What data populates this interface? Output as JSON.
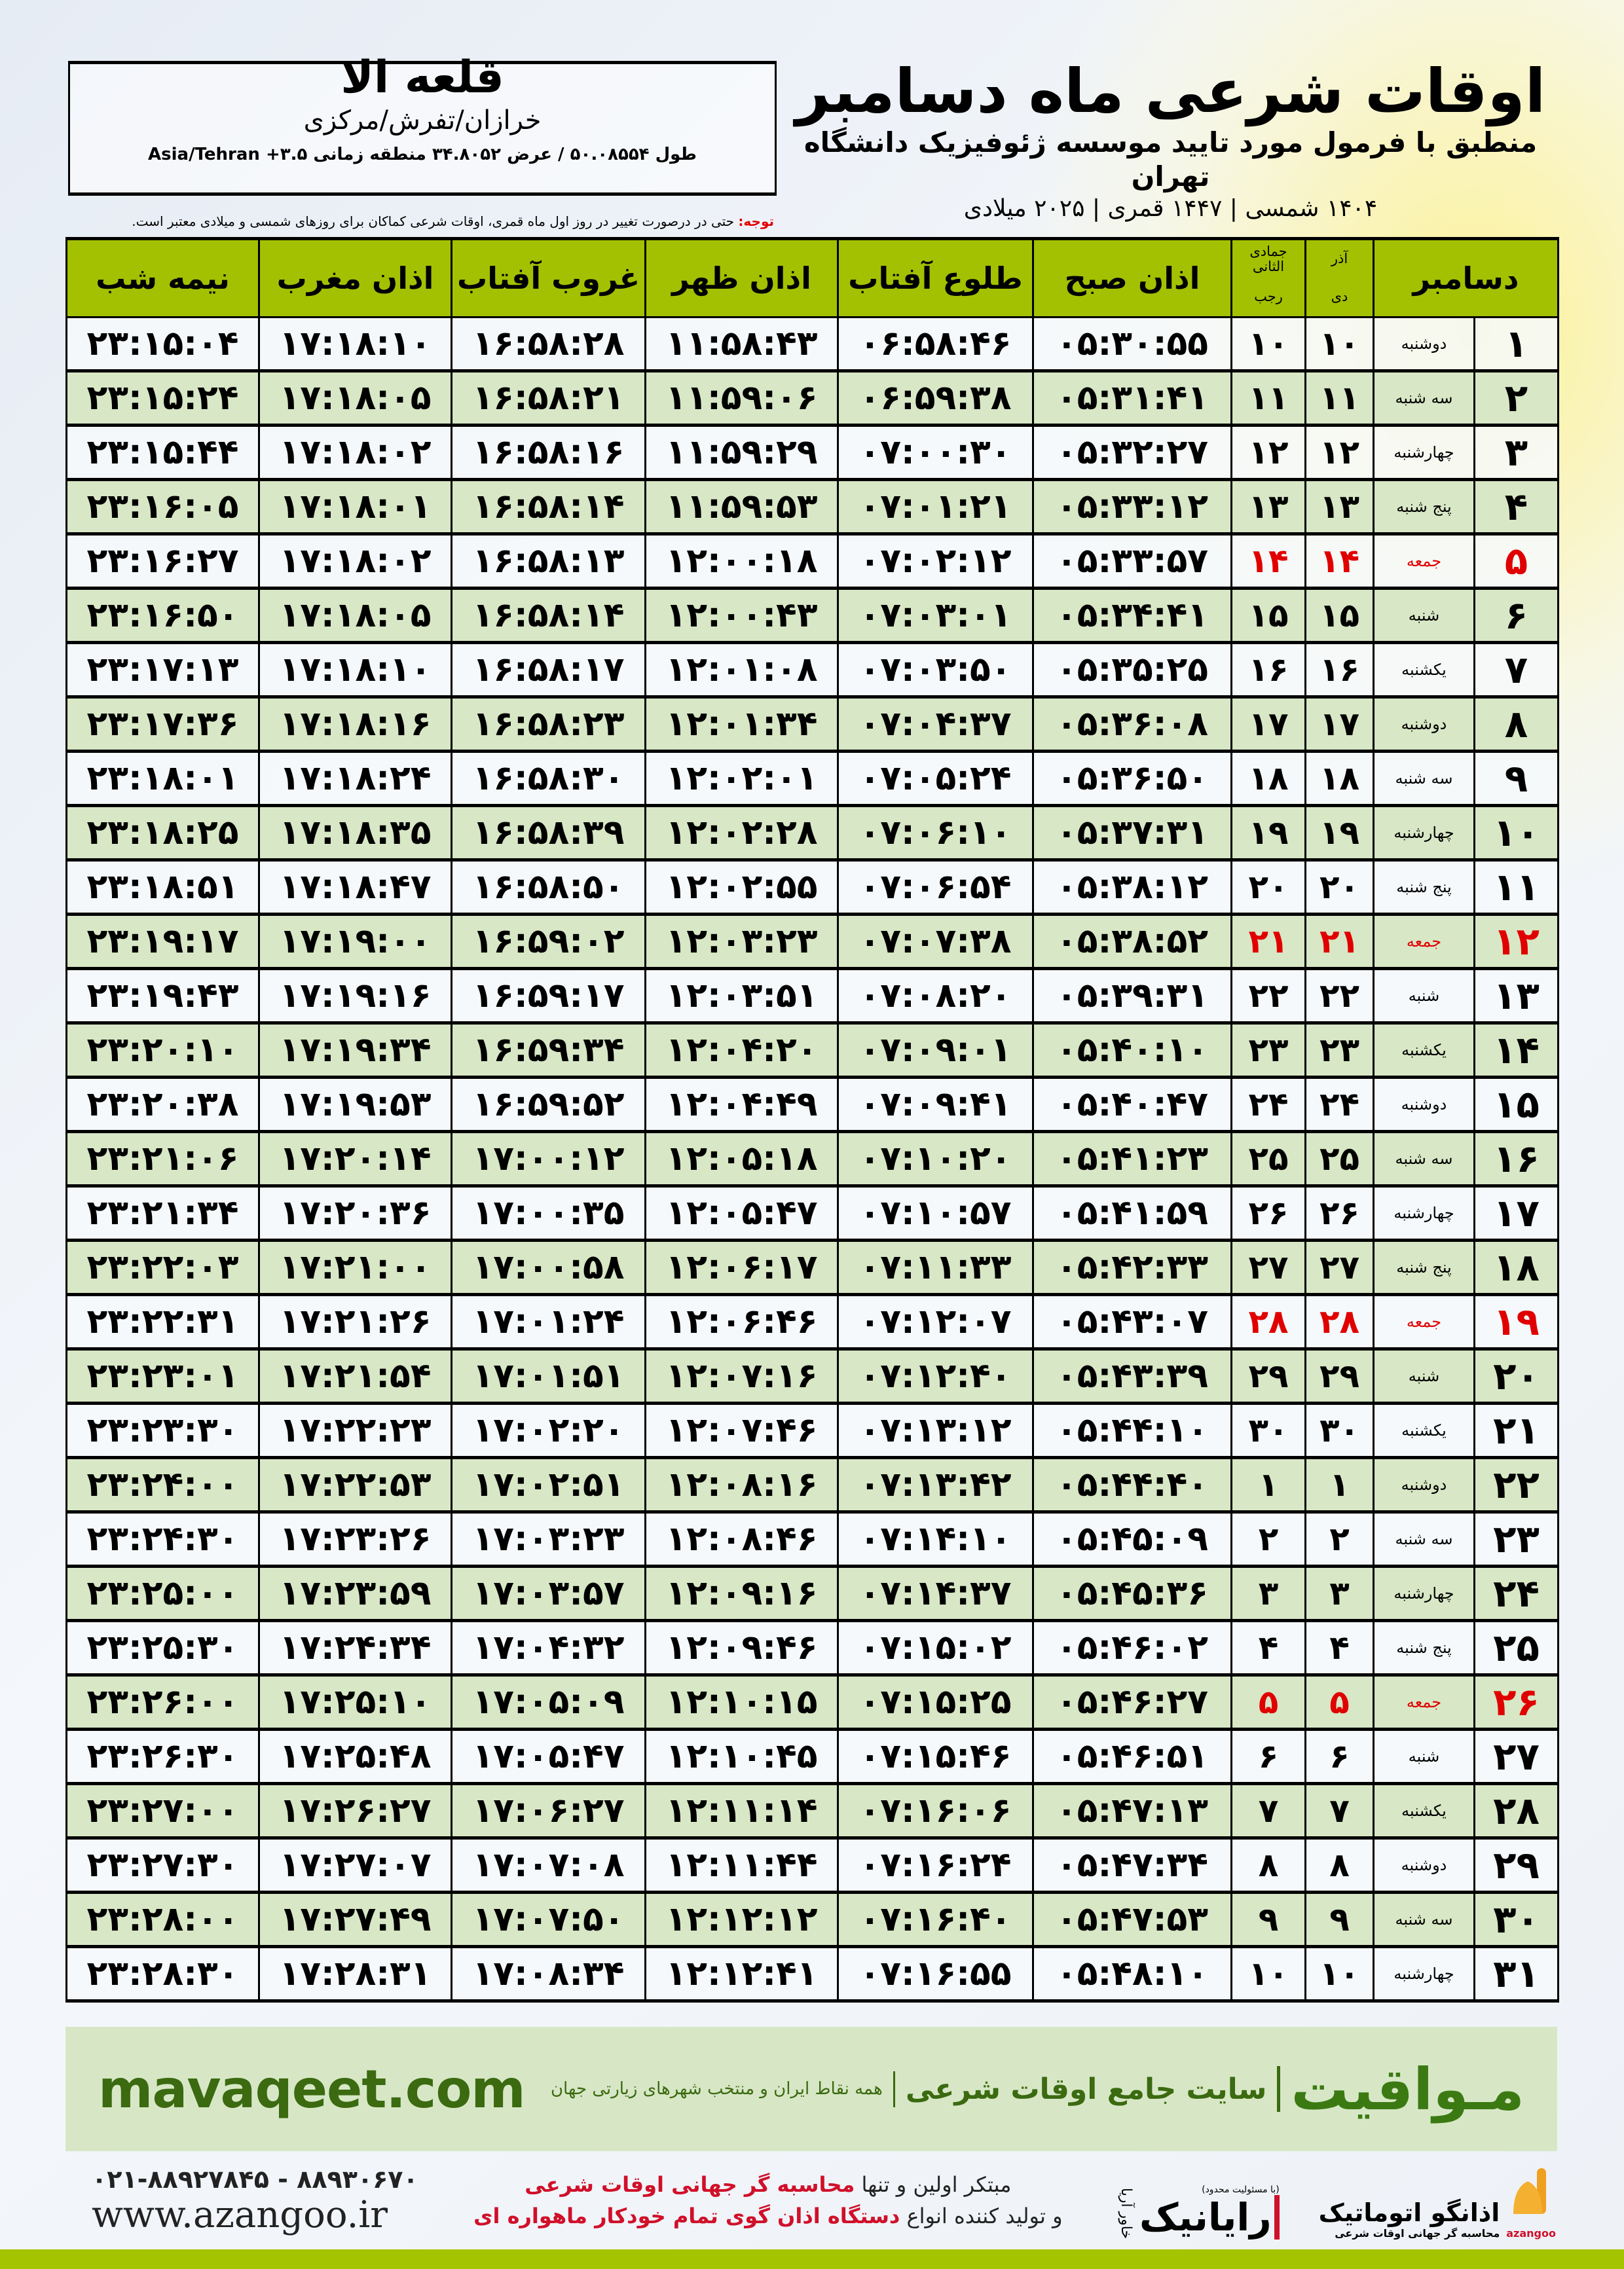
{
  "header": {
    "title": "اوقات شرعی ماه دسامبر",
    "subtitle": "منطبق با فرمول مورد تایید موسسه ژئوفیزیک دانشگاه تهران",
    "date_line": "۱۴۰۴ شمسی | ۱۴۴۷ قمری | ۲۰۲۵ میلادی"
  },
  "city": {
    "name": "قلعه الا",
    "region": "خرازان/تفرش/مرکزی",
    "coords": "طول ۵۰.۰۸۵۵۴ / عرض ۳۴.۸۰۵۲ منطقه زمانی ۳.۵+ Asia/Tehran"
  },
  "note": {
    "label": "توجه:",
    "text": " حتی در درصورت تغییر در روز اول ماه قمری، اوقات شرعی کماکان برای روزهای شمسی و میلادی معتبر است."
  },
  "table": {
    "headers": {
      "month": "دسامبر",
      "solar_top": "آذر",
      "solar_bottom": "دی",
      "lunar_top": "جمادی الثانی",
      "lunar_bottom": "رجب",
      "fajr": "اذان صبح",
      "sunrise": "طلوع آفتاب",
      "dhuhr": "اذان ظهر",
      "sunset": "غروب آفتاب",
      "maghrib": "اذان مغرب",
      "midnight": "نیمه شب"
    },
    "highlight_color": "#e00000",
    "header_color": "#a3c100",
    "rows": [
      [
        "۱",
        "دوشنبه",
        "۱۰",
        "۱۰",
        "۰۵:۳۰:۵۵",
        "۰۶:۵۸:۴۶",
        "۱۱:۵۸:۴۳",
        "۱۶:۵۸:۲۸",
        "۱۷:۱۸:۱۰",
        "۲۳:۱۵:۰۴"
      ],
      [
        "۲",
        "سه شنبه",
        "۱۱",
        "۱۱",
        "۰۵:۳۱:۴۱",
        "۰۶:۵۹:۳۸",
        "۱۱:۵۹:۰۶",
        "۱۶:۵۸:۲۱",
        "۱۷:۱۸:۰۵",
        "۲۳:۱۵:۲۴"
      ],
      [
        "۳",
        "چهارشنبه",
        "۱۲",
        "۱۲",
        "۰۵:۳۲:۲۷",
        "۰۷:۰۰:۳۰",
        "۱۱:۵۹:۲۹",
        "۱۶:۵۸:۱۶",
        "۱۷:۱۸:۰۲",
        "۲۳:۱۵:۴۴"
      ],
      [
        "۴",
        "پنج شنبه",
        "۱۳",
        "۱۳",
        "۰۵:۳۳:۱۲",
        "۰۷:۰۱:۲۱",
        "۱۱:۵۹:۵۳",
        "۱۶:۵۸:۱۴",
        "۱۷:۱۸:۰۱",
        "۲۳:۱۶:۰۵"
      ],
      [
        "۵",
        "جمعه",
        "۱۴",
        "۱۴",
        "۰۵:۳۳:۵۷",
        "۰۷:۰۲:۱۲",
        "۱۲:۰۰:۱۸",
        "۱۶:۵۸:۱۳",
        "۱۷:۱۸:۰۲",
        "۲۳:۱۶:۲۷"
      ],
      [
        "۶",
        "شنبه",
        "۱۵",
        "۱۵",
        "۰۵:۳۴:۴۱",
        "۰۷:۰۳:۰۱",
        "۱۲:۰۰:۴۳",
        "۱۶:۵۸:۱۴",
        "۱۷:۱۸:۰۵",
        "۲۳:۱۶:۵۰"
      ],
      [
        "۷",
        "یکشنبه",
        "۱۶",
        "۱۶",
        "۰۵:۳۵:۲۵",
        "۰۷:۰۳:۵۰",
        "۱۲:۰۱:۰۸",
        "۱۶:۵۸:۱۷",
        "۱۷:۱۸:۱۰",
        "۲۳:۱۷:۱۳"
      ],
      [
        "۸",
        "دوشنبه",
        "۱۷",
        "۱۷",
        "۰۵:۳۶:۰۸",
        "۰۷:۰۴:۳۷",
        "۱۲:۰۱:۳۴",
        "۱۶:۵۸:۲۳",
        "۱۷:۱۸:۱۶",
        "۲۳:۱۷:۳۶"
      ],
      [
        "۹",
        "سه شنبه",
        "۱۸",
        "۱۸",
        "۰۵:۳۶:۵۰",
        "۰۷:۰۵:۲۴",
        "۱۲:۰۲:۰۱",
        "۱۶:۵۸:۳۰",
        "۱۷:۱۸:۲۴",
        "۲۳:۱۸:۰۱"
      ],
      [
        "۱۰",
        "چهارشنبه",
        "۱۹",
        "۱۹",
        "۰۵:۳۷:۳۱",
        "۰۷:۰۶:۱۰",
        "۱۲:۰۲:۲۸",
        "۱۶:۵۸:۳۹",
        "۱۷:۱۸:۳۵",
        "۲۳:۱۸:۲۵"
      ],
      [
        "۱۱",
        "پنج شنبه",
        "۲۰",
        "۲۰",
        "۰۵:۳۸:۱۲",
        "۰۷:۰۶:۵۴",
        "۱۲:۰۲:۵۵",
        "۱۶:۵۸:۵۰",
        "۱۷:۱۸:۴۷",
        "۲۳:۱۸:۵۱"
      ],
      [
        "۱۲",
        "جمعه",
        "۲۱",
        "۲۱",
        "۰۵:۳۸:۵۲",
        "۰۷:۰۷:۳۸",
        "۱۲:۰۳:۲۳",
        "۱۶:۵۹:۰۲",
        "۱۷:۱۹:۰۰",
        "۲۳:۱۹:۱۷"
      ],
      [
        "۱۳",
        "شنبه",
        "۲۲",
        "۲۲",
        "۰۵:۳۹:۳۱",
        "۰۷:۰۸:۲۰",
        "۱۲:۰۳:۵۱",
        "۱۶:۵۹:۱۷",
        "۱۷:۱۹:۱۶",
        "۲۳:۱۹:۴۳"
      ],
      [
        "۱۴",
        "یکشنبه",
        "۲۳",
        "۲۳",
        "۰۵:۴۰:۱۰",
        "۰۷:۰۹:۰۱",
        "۱۲:۰۴:۲۰",
        "۱۶:۵۹:۳۴",
        "۱۷:۱۹:۳۴",
        "۲۳:۲۰:۱۰"
      ],
      [
        "۱۵",
        "دوشنبه",
        "۲۴",
        "۲۴",
        "۰۵:۴۰:۴۷",
        "۰۷:۰۹:۴۱",
        "۱۲:۰۴:۴۹",
        "۱۶:۵۹:۵۲",
        "۱۷:۱۹:۵۳",
        "۲۳:۲۰:۳۸"
      ],
      [
        "۱۶",
        "سه شنبه",
        "۲۵",
        "۲۵",
        "۰۵:۴۱:۲۳",
        "۰۷:۱۰:۲۰",
        "۱۲:۰۵:۱۸",
        "۱۷:۰۰:۱۲",
        "۱۷:۲۰:۱۴",
        "۲۳:۲۱:۰۶"
      ],
      [
        "۱۷",
        "چهارشنبه",
        "۲۶",
        "۲۶",
        "۰۵:۴۱:۵۹",
        "۰۷:۱۰:۵۷",
        "۱۲:۰۵:۴۷",
        "۱۷:۰۰:۳۵",
        "۱۷:۲۰:۳۶",
        "۲۳:۲۱:۳۴"
      ],
      [
        "۱۸",
        "پنج شنبه",
        "۲۷",
        "۲۷",
        "۰۵:۴۲:۳۳",
        "۰۷:۱۱:۳۳",
        "۱۲:۰۶:۱۷",
        "۱۷:۰۰:۵۸",
        "۱۷:۲۱:۰۰",
        "۲۳:۲۲:۰۳"
      ],
      [
        "۱۹",
        "جمعه",
        "۲۸",
        "۲۸",
        "۰۵:۴۳:۰۷",
        "۰۷:۱۲:۰۷",
        "۱۲:۰۶:۴۶",
        "۱۷:۰۱:۲۴",
        "۱۷:۲۱:۲۶",
        "۲۳:۲۲:۳۱"
      ],
      [
        "۲۰",
        "شنبه",
        "۲۹",
        "۲۹",
        "۰۵:۴۳:۳۹",
        "۰۷:۱۲:۴۰",
        "۱۲:۰۷:۱۶",
        "۱۷:۰۱:۵۱",
        "۱۷:۲۱:۵۴",
        "۲۳:۲۳:۰۱"
      ],
      [
        "۲۱",
        "یکشنبه",
        "۳۰",
        "۳۰",
        "۰۵:۴۴:۱۰",
        "۰۷:۱۳:۱۲",
        "۱۲:۰۷:۴۶",
        "۱۷:۰۲:۲۰",
        "۱۷:۲۲:۲۳",
        "۲۳:۲۳:۳۰"
      ],
      [
        "۲۲",
        "دوشنبه",
        "۱",
        "۱",
        "۰۵:۴۴:۴۰",
        "۰۷:۱۳:۴۲",
        "۱۲:۰۸:۱۶",
        "۱۷:۰۲:۵۱",
        "۱۷:۲۲:۵۳",
        "۲۳:۲۴:۰۰"
      ],
      [
        "۲۳",
        "سه شنبه",
        "۲",
        "۲",
        "۰۵:۴۵:۰۹",
        "۰۷:۱۴:۱۰",
        "۱۲:۰۸:۴۶",
        "۱۷:۰۳:۲۳",
        "۱۷:۲۳:۲۶",
        "۲۳:۲۴:۳۰"
      ],
      [
        "۲۴",
        "چهارشنبه",
        "۳",
        "۳",
        "۰۵:۴۵:۳۶",
        "۰۷:۱۴:۳۷",
        "۱۲:۰۹:۱۶",
        "۱۷:۰۳:۵۷",
        "۱۷:۲۳:۵۹",
        "۲۳:۲۵:۰۰"
      ],
      [
        "۲۵",
        "پنج شنبه",
        "۴",
        "۴",
        "۰۵:۴۶:۰۲",
        "۰۷:۱۵:۰۲",
        "۱۲:۰۹:۴۶",
        "۱۷:۰۴:۳۲",
        "۱۷:۲۴:۳۴",
        "۲۳:۲۵:۳۰"
      ],
      [
        "۲۶",
        "جمعه",
        "۵",
        "۵",
        "۰۵:۴۶:۲۷",
        "۰۷:۱۵:۲۵",
        "۱۲:۱۰:۱۵",
        "۱۷:۰۵:۰۹",
        "۱۷:۲۵:۱۰",
        "۲۳:۲۶:۰۰"
      ],
      [
        "۲۷",
        "شنبه",
        "۶",
        "۶",
        "۰۵:۴۶:۵۱",
        "۰۷:۱۵:۴۶",
        "۱۲:۱۰:۴۵",
        "۱۷:۰۵:۴۷",
        "۱۷:۲۵:۴۸",
        "۲۳:۲۶:۳۰"
      ],
      [
        "۲۸",
        "یکشنبه",
        "۷",
        "۷",
        "۰۵:۴۷:۱۳",
        "۰۷:۱۶:۰۶",
        "۱۲:۱۱:۱۴",
        "۱۷:۰۶:۲۷",
        "۱۷:۲۶:۲۷",
        "۲۳:۲۷:۰۰"
      ],
      [
        "۲۹",
        "دوشنبه",
        "۸",
        "۸",
        "۰۵:۴۷:۳۴",
        "۰۷:۱۶:۲۴",
        "۱۲:۱۱:۴۴",
        "۱۷:۰۷:۰۸",
        "۱۷:۲۷:۰۷",
        "۲۳:۲۷:۳۰"
      ],
      [
        "۳۰",
        "سه شنبه",
        "۹",
        "۹",
        "۰۵:۴۷:۵۳",
        "۰۷:۱۶:۴۰",
        "۱۲:۱۲:۱۲",
        "۱۷:۰۷:۵۰",
        "۱۷:۲۷:۴۹",
        "۲۳:۲۸:۰۰"
      ],
      [
        "۳۱",
        "چهارشنبه",
        "۱۰",
        "۱۰",
        "۰۵:۴۸:۱۰",
        "۰۷:۱۶:۵۵",
        "۱۲:۱۲:۴۱",
        "۱۷:۰۸:۳۴",
        "۱۷:۲۸:۳۱",
        "۲۳:۲۸:۳۰"
      ]
    ]
  },
  "banner": {
    "logo": "مـواقیت",
    "slogan": "سایت جامع اوقات شرعی",
    "desc": "همه نقاط ایران و منتخب شهرهای زیارتی جهان",
    "url": "mavaqeet.com"
  },
  "footer": {
    "phone": "۰۲۱-۸۸۹۲۷۸۴۵ - ۸۸۹۳۰۶۷۰",
    "web": "www.azangoo.ir",
    "line1_a": "مبتکر اولین و تنها ",
    "line1_b": "محاسبه گر جهانی اوقات شرعی",
    "line2_a": "و تولید کننده انواع ",
    "line2_b": "دستگاه اذان گوی تمام خودکار ماهواره ای",
    "rayanik": {
      "note": "(با مسئولیت محدود)",
      "name": "رایانیک",
      "sub": "خاور آریا"
    },
    "azangoo": {
      "name": "اذانگو اتوماتیک",
      "sub": "محاسبه گر جهانی اوقات شرعی",
      "latin": "azangoo"
    }
  }
}
